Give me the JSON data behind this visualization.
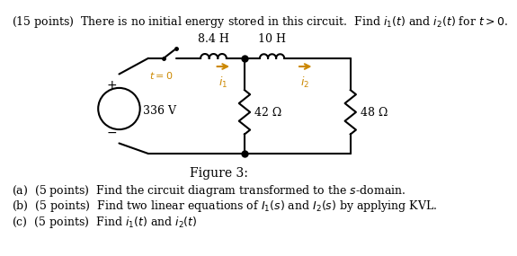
{
  "title_text": "(15 points)  There is no initial energy stored in this circuit.  Find $i_1(t)$ and $i_2(t)$ for $t > 0$.",
  "figure_caption": "Figure 3:",
  "part_a": "(a)  (5 points)  Find the circuit diagram transformed to the $s$-domain.",
  "part_b": "(b)  (5 points)  Find two linear equations of $I_1(s)$ and $I_2(s)$ by applying KVL.",
  "part_c": "(c)  (5 points)  Find $i_1(t)$ and $i_2(t)$",
  "bg_color": "#ffffff",
  "circuit_color": "#000000",
  "orange_color": "#cc8800",
  "label_84H": "8.4 H",
  "label_10H": "10 H",
  "label_336V": "336 V",
  "label_42ohm": "42 Ω",
  "label_48ohm": "48 Ω",
  "label_t0": "$t=0$",
  "label_i1": "$i_1$",
  "label_i2": "$i_2$"
}
